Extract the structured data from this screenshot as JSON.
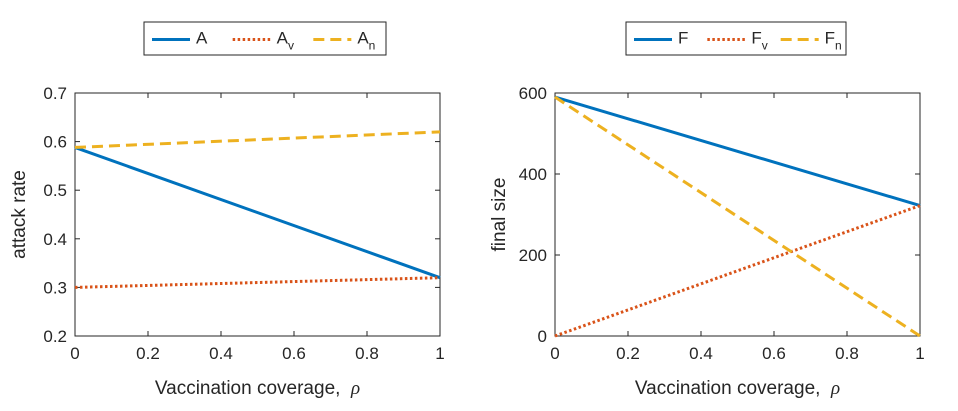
{
  "chart_data": [
    {
      "type": "line",
      "xlabel": "Vaccination coverage,",
      "xlabel_symbol": "ρ",
      "ylabel": "attack rate",
      "xlim": [
        0,
        1
      ],
      "ylim": [
        0.2,
        0.7
      ],
      "xticks": [
        "0",
        "0.2",
        "0.4",
        "0.6",
        "0.8",
        "1"
      ],
      "yticks": [
        "0.2",
        "0.3",
        "0.4",
        "0.5",
        "0.6",
        "0.7"
      ],
      "legend_position": "top-center",
      "series": [
        {
          "name": "A",
          "name_base": "A",
          "name_sub": "",
          "color": "#0072BD",
          "style": "solid",
          "x": [
            0,
            1
          ],
          "y": [
            0.588,
            0.32
          ]
        },
        {
          "name": "A_v",
          "name_base": "A",
          "name_sub": "v",
          "color": "#D95319",
          "style": "dotted",
          "x": [
            0,
            1
          ],
          "y": [
            0.3,
            0.32
          ]
        },
        {
          "name": "A_n",
          "name_base": "A",
          "name_sub": "n",
          "color": "#EDB120",
          "style": "dashed",
          "x": [
            0,
            1
          ],
          "y": [
            0.588,
            0.62
          ]
        }
      ]
    },
    {
      "type": "line",
      "xlabel": "Vaccination coverage,",
      "xlabel_symbol": "ρ",
      "ylabel": "final size",
      "xlim": [
        0,
        1
      ],
      "ylim": [
        0,
        600
      ],
      "xticks": [
        "0",
        "0.2",
        "0.4",
        "0.6",
        "0.8",
        "1"
      ],
      "yticks": [
        "0",
        "200",
        "400",
        "600"
      ],
      "legend_position": "top-center",
      "series": [
        {
          "name": "F",
          "name_base": "F",
          "name_sub": "",
          "color": "#0072BD",
          "style": "solid",
          "x": [
            0,
            1
          ],
          "y": [
            590,
            322
          ]
        },
        {
          "name": "F_v",
          "name_base": "F",
          "name_sub": "v",
          "color": "#D95319",
          "style": "dotted",
          "x": [
            0,
            1
          ],
          "y": [
            0,
            322
          ]
        },
        {
          "name": "F_n",
          "name_base": "F",
          "name_sub": "n",
          "color": "#EDB120",
          "style": "dashed",
          "x": [
            0,
            1
          ],
          "y": [
            590,
            0
          ]
        }
      ]
    }
  ]
}
